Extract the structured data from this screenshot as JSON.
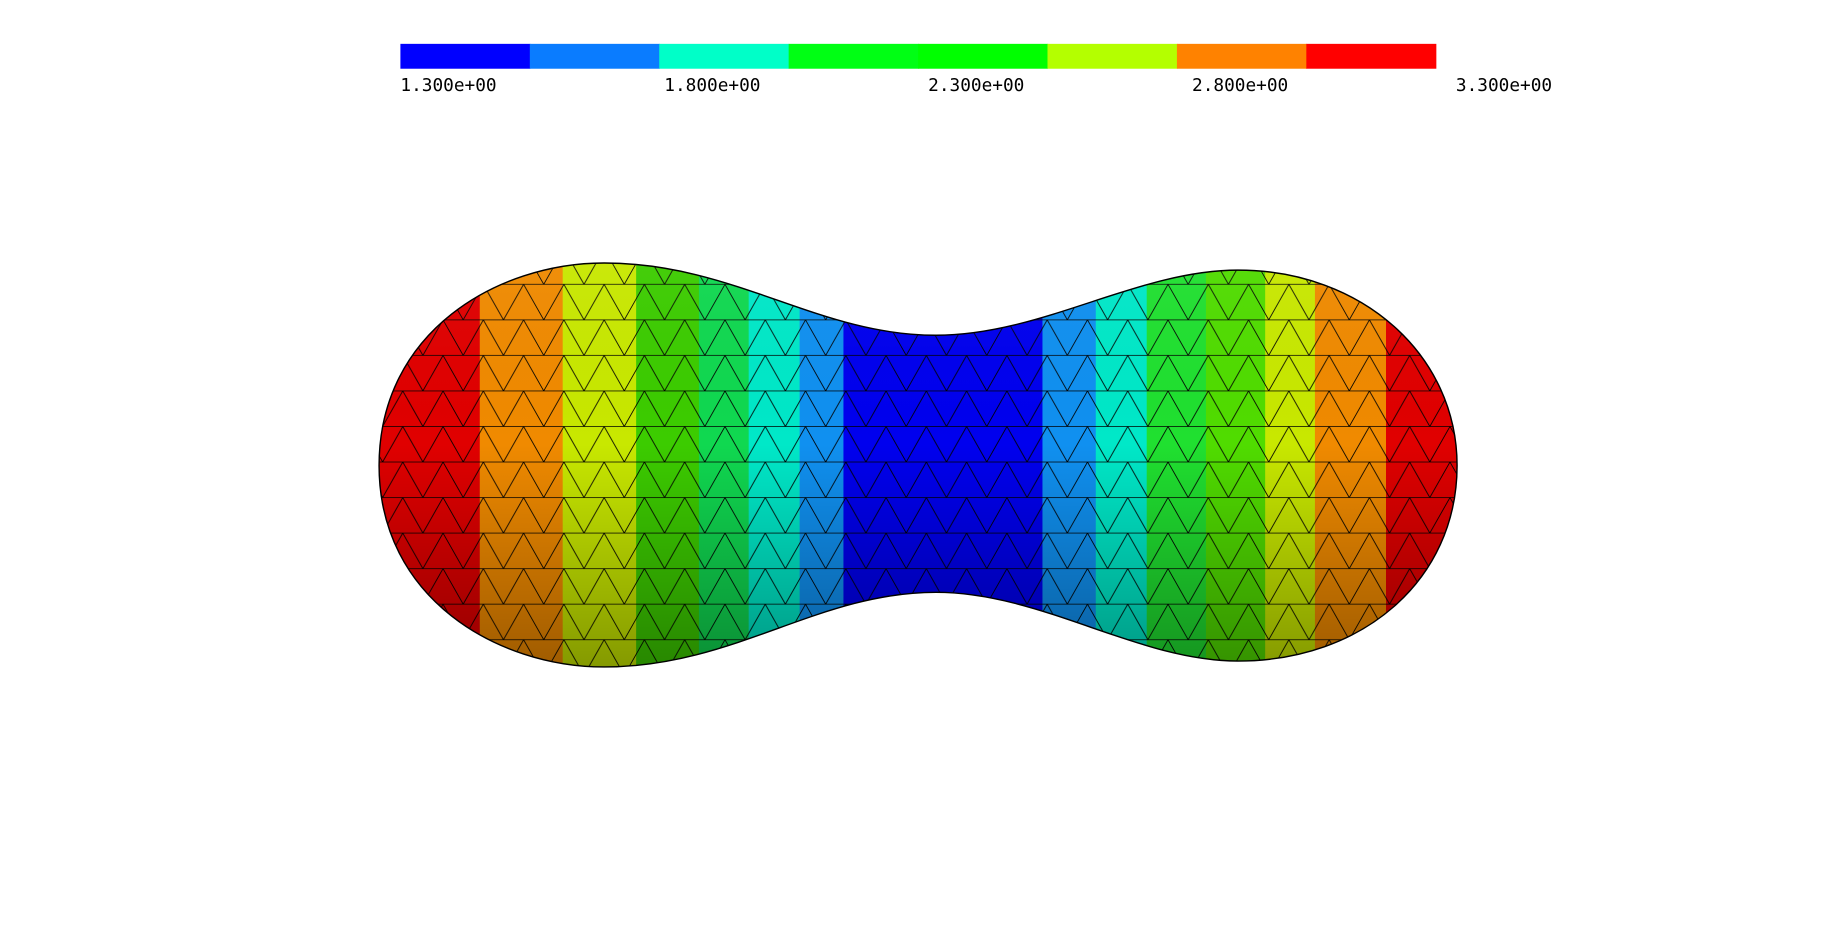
{
  "colorbar": {
    "labels": [
      "1.300e+00",
      "1.800e+00",
      "2.300e+00",
      "2.800e+00",
      "3.300e+00"
    ],
    "colors": [
      "#0000ff",
      "#0a7cff",
      "#00ffc8",
      "#00ff14",
      "#00ff00",
      "#b4ff00",
      "#ff8200",
      "#ff0000"
    ]
  }
}
